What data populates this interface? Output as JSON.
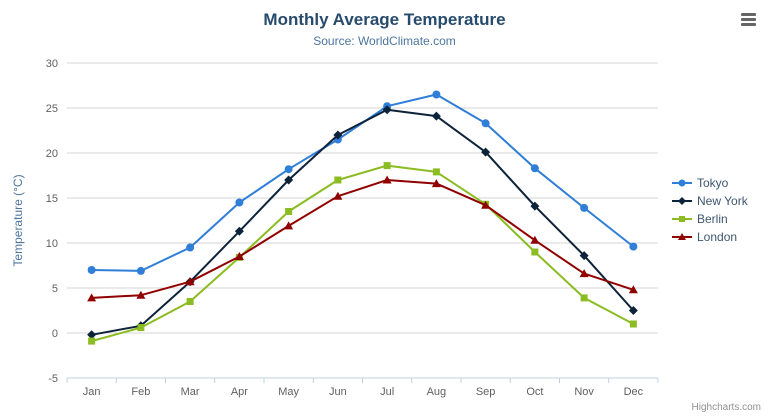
{
  "chart_data": {
    "type": "line",
    "title": "Monthly Average Temperature",
    "subtitle": "Source: WorldClimate.com",
    "categories": [
      "Jan",
      "Feb",
      "Mar",
      "Apr",
      "May",
      "Jun",
      "Jul",
      "Aug",
      "Sep",
      "Oct",
      "Nov",
      "Dec"
    ],
    "ylabel": "Temperature (°C)",
    "ylim": [
      -5,
      30
    ],
    "ytick_interval": 5,
    "grid": true,
    "legend_position": "right",
    "series": [
      {
        "name": "Tokyo",
        "color": "#2f7ed8",
        "marker": "circle",
        "values": [
          7.0,
          6.9,
          9.5,
          14.5,
          18.2,
          21.5,
          25.2,
          26.5,
          23.3,
          18.3,
          13.9,
          9.6
        ]
      },
      {
        "name": "New York",
        "color": "#0d233a",
        "marker": "diamond",
        "values": [
          -0.2,
          0.8,
          5.7,
          11.3,
          17.0,
          22.0,
          24.8,
          24.1,
          20.1,
          14.1,
          8.6,
          2.5
        ]
      },
      {
        "name": "Berlin",
        "color": "#8bbc21",
        "marker": "square",
        "values": [
          -0.9,
          0.6,
          3.5,
          8.4,
          13.5,
          17.0,
          18.6,
          17.9,
          14.3,
          9.0,
          3.9,
          1.0
        ]
      },
      {
        "name": "London",
        "color": "#910000",
        "marker": "triangle",
        "values": [
          3.9,
          4.2,
          5.7,
          8.5,
          11.9,
          15.2,
          17.0,
          16.6,
          14.2,
          10.3,
          6.6,
          4.8
        ]
      }
    ],
    "colors": {
      "grid_line": "#d4d4d4",
      "axis_line": "#c0d0e0",
      "axis_label": "#606060",
      "axis_title": "#4d759e",
      "title": "#274b6d",
      "subtitle": "#4d759e",
      "legend_label": "#3E576F"
    }
  },
  "credits": {
    "text": "Highcharts.com"
  }
}
